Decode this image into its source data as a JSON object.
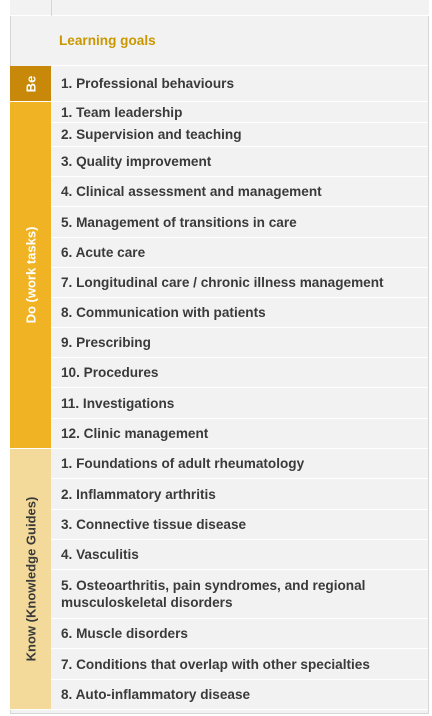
{
  "header": {
    "title": "Learning goals"
  },
  "sections": {
    "be": {
      "label": "Be",
      "color": "#c8890a",
      "text_color": "#ffffff"
    },
    "do": {
      "label": "Do (work tasks)",
      "color": "#f0b323",
      "text_color": "#ffffff"
    },
    "know": {
      "label": "Know (Knowledge Guides)",
      "color": "#f3d99a",
      "text_color": "#3a3a3a"
    }
  },
  "be_items": [
    "1. Professional behaviours"
  ],
  "do_items": [
    "1. Team leadership",
    "2. Supervision and teaching",
    "3. Quality improvement",
    "4. Clinical assessment and management",
    "5. Management of transitions in care",
    "6. Acute care",
    "7. Longitudinal care / chronic illness management",
    "8. Communication with patients",
    "9. Prescribing",
    "10. Procedures",
    "11. Investigations",
    "12. Clinic management"
  ],
  "know_items": [
    "1. Foundations of adult rheumatology",
    "2. Inflammatory arthritis",
    "3. Connective tissue disease",
    "4. Vasculitis",
    "5. Osteoarthritis, pain syndromes, and regional musculoskeletal disorders",
    "6. Muscle disorders",
    "7. Conditions that overlap with other specialties",
    "8. Auto-inflammatory disease"
  ]
}
